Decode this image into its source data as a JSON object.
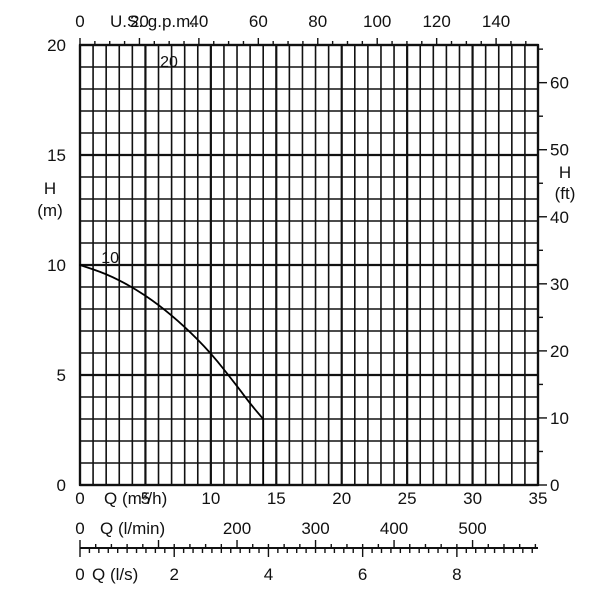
{
  "chart_data": {
    "type": "line",
    "title": "",
    "xlabel": "Q (m³/h)",
    "ylabel": "H (m)",
    "xlim": [
      0,
      35
    ],
    "ylim": [
      0,
      20
    ],
    "x_ticks": [
      "0",
      "5",
      "10",
      "15",
      "20",
      "25",
      "30",
      "35"
    ],
    "y_ticks": [
      "0",
      "5",
      "10",
      "15",
      "20"
    ],
    "grid": true,
    "series": [
      {
        "name": "10",
        "x": [
          0,
          2,
          4,
          6,
          8,
          10,
          12,
          13,
          14
        ],
        "y": [
          10,
          9.6,
          9.0,
          8.2,
          7.2,
          6.0,
          4.5,
          3.7,
          3.0
        ]
      }
    ],
    "annotations": [
      {
        "text": "20",
        "x": 6.8,
        "y": 19.0
      },
      {
        "text": "10",
        "x": 2.3,
        "y": 10.1
      }
    ],
    "secondary_axes": {
      "top": {
        "label": "U.S. g.p.m.",
        "ticks": [
          "0",
          "20",
          "40",
          "60",
          "80",
          "100",
          "120",
          "140"
        ],
        "tick_values": [
          0,
          20,
          40,
          60,
          80,
          100,
          120,
          140
        ]
      },
      "right": {
        "label": "H",
        "unit": "(ft)",
        "ticks": [
          "0",
          "10",
          "20",
          "30",
          "40",
          "50",
          "60"
        ],
        "tick_values": [
          0,
          10,
          20,
          30,
          40,
          50,
          60
        ]
      },
      "bottom_lmin": {
        "label": "Q (l/min)",
        "ticks": [
          "0",
          "200",
          "300",
          "400",
          "500"
        ],
        "tick_values": [
          0,
          200,
          300,
          400,
          500
        ]
      },
      "bottom_ls": {
        "label": "Q (l/s)",
        "ticks": [
          "0",
          "2",
          "4",
          "6",
          "8"
        ],
        "tick_values": [
          0,
          2,
          4,
          6,
          8
        ]
      }
    },
    "left_axis_label": {
      "line1": "H",
      "line2": "(m)"
    },
    "colors": {
      "grid": "#111111",
      "curve": "#000000",
      "text": "#111111"
    }
  }
}
